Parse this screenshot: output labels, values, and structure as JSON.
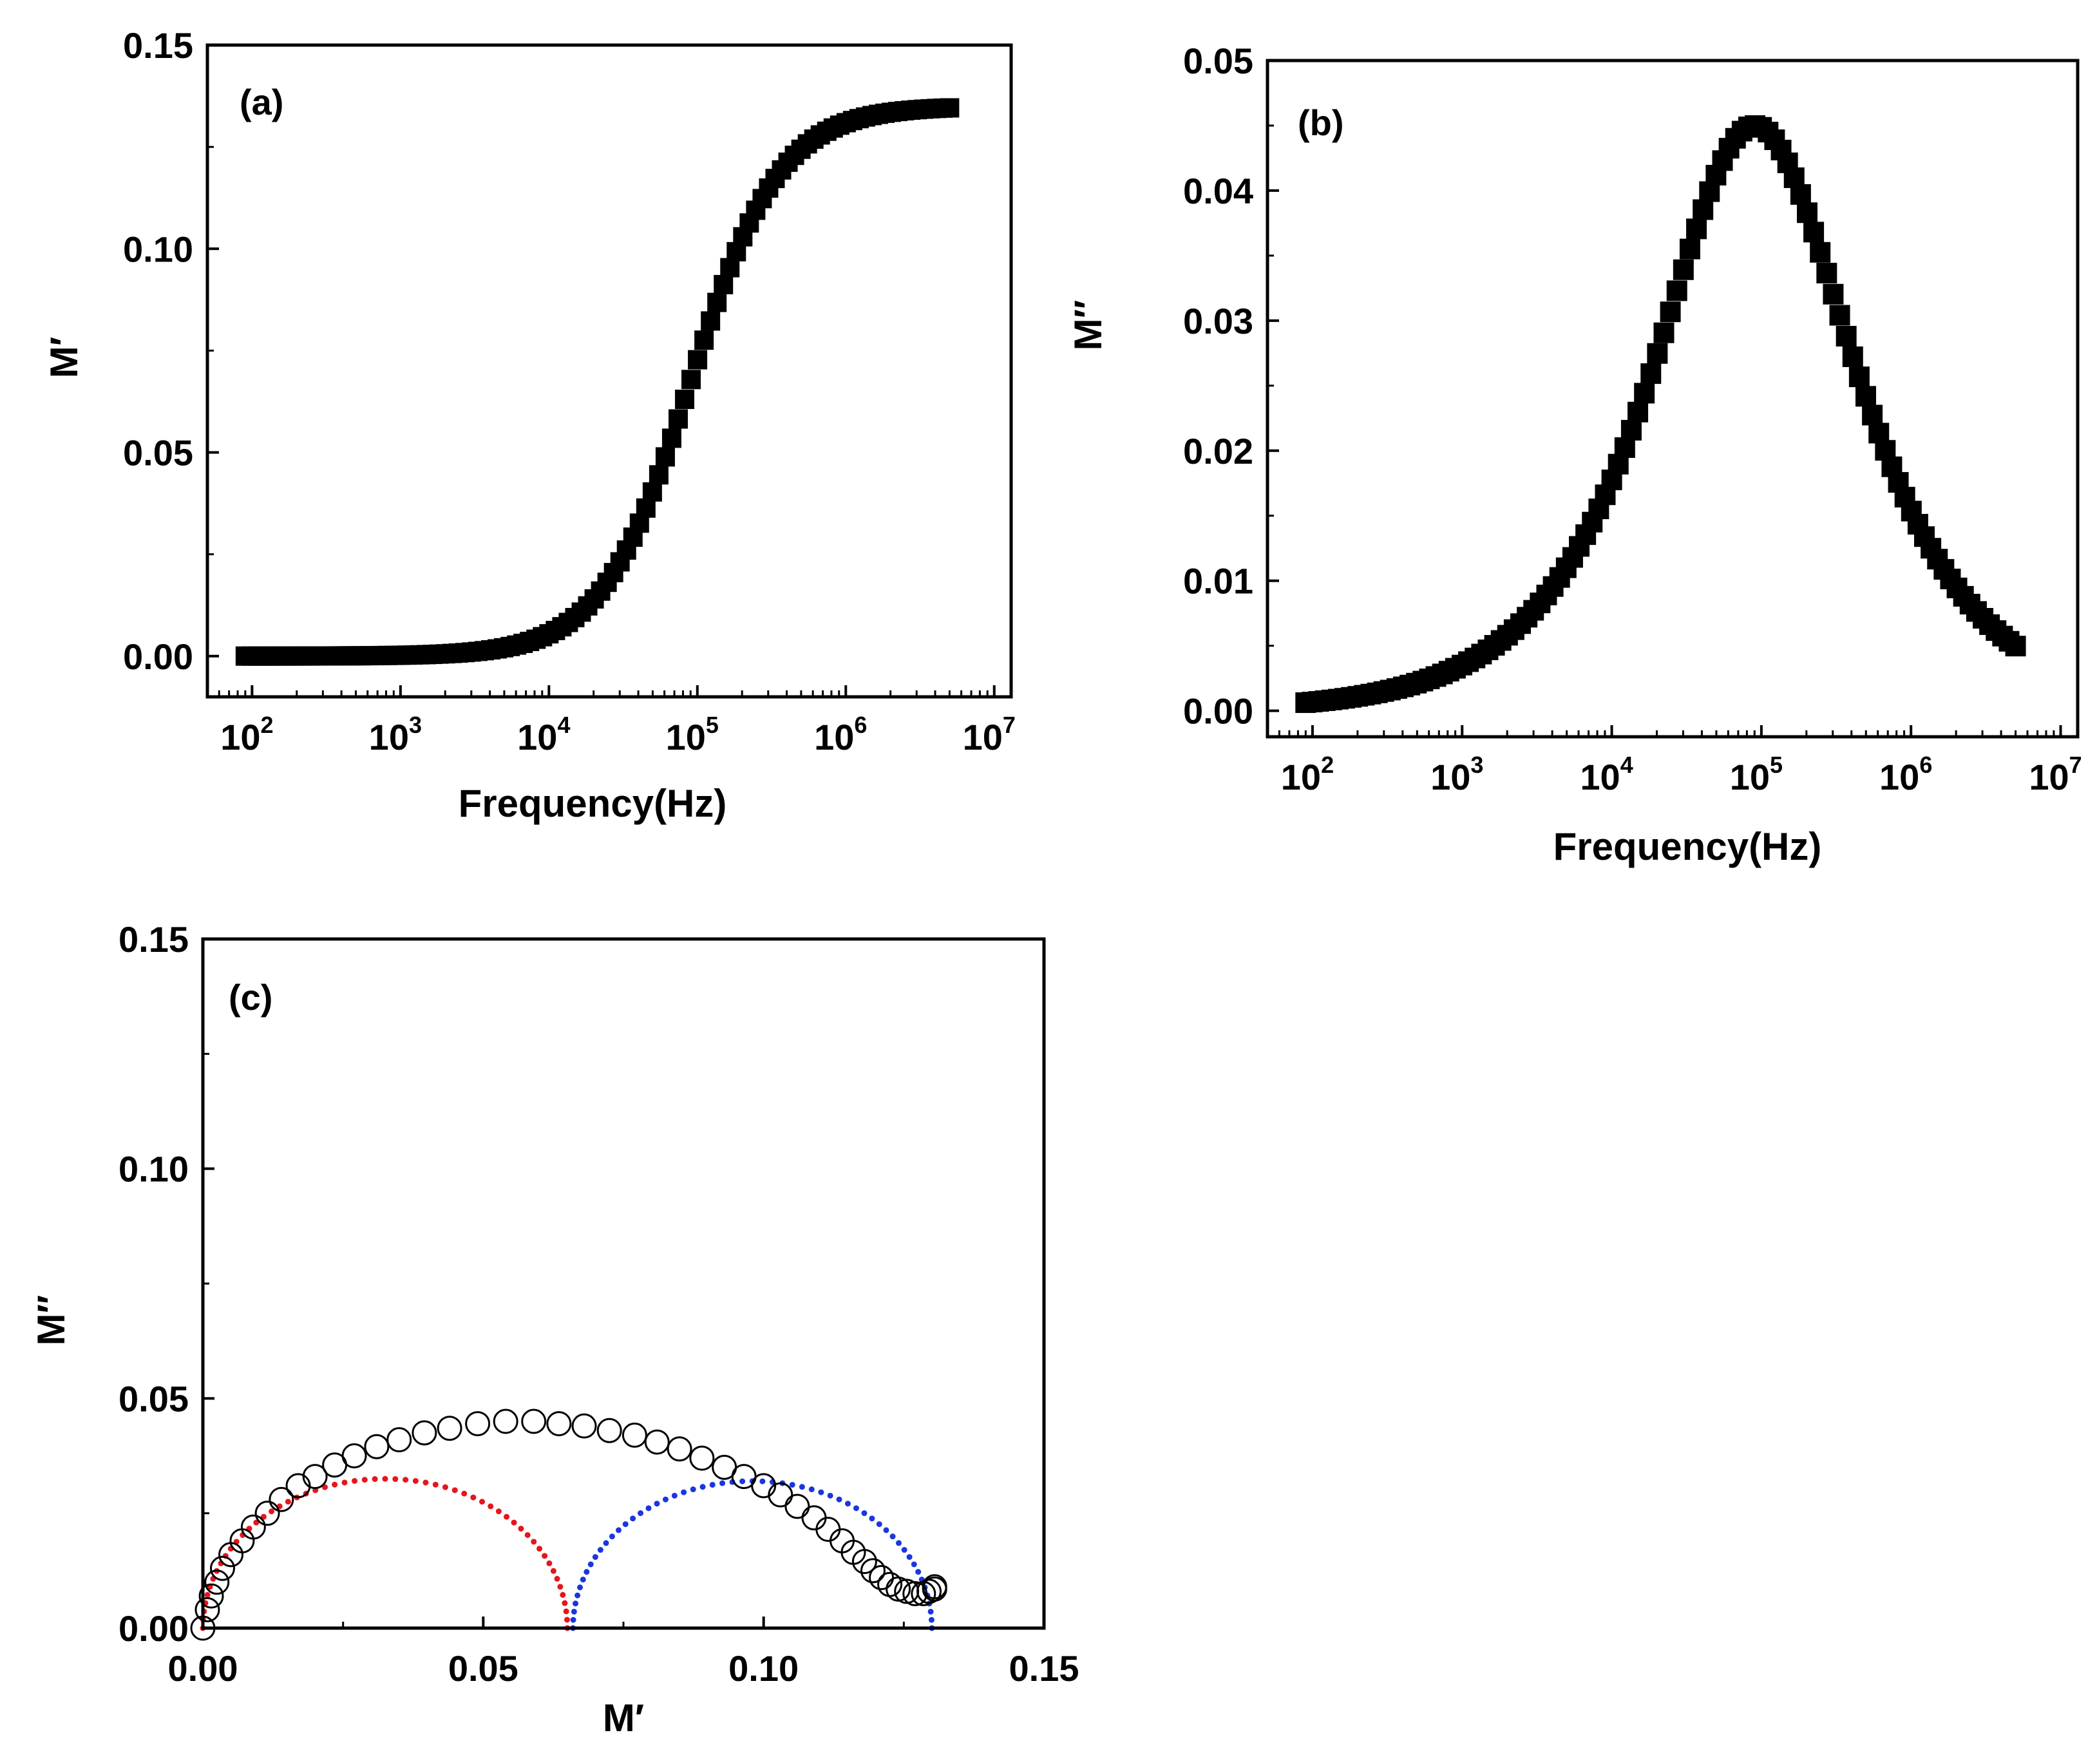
{
  "chart_data": [
    {
      "id": "a",
      "type": "scatter",
      "panel_label": "(a)",
      "xlabel": "Frequency(Hz)",
      "ylabel": "M′",
      "xscale": "log",
      "xlim": [
        50,
        13000000
      ],
      "ylim": [
        -0.01,
        0.15
      ],
      "xticks": [
        {
          "base": "10",
          "exp": "2",
          "value": 100
        },
        {
          "base": "10",
          "exp": "3",
          "value": 1000
        },
        {
          "base": "10",
          "exp": "4",
          "value": 10000
        },
        {
          "base": "10",
          "exp": "5",
          "value": 100000
        },
        {
          "base": "10",
          "exp": "6",
          "value": 1000000
        },
        {
          "base": "10",
          "exp": "7",
          "value": 10000000
        }
      ],
      "yticks": [
        {
          "label": "0.00",
          "value": 0
        },
        {
          "label": "0.05",
          "value": 0.05
        },
        {
          "label": "0.10",
          "value": 0.1
        },
        {
          "label": "0.15",
          "value": 0.15
        }
      ],
      "marker": "filled-square",
      "series": [
        {
          "name": "M′ vs frequency",
          "model": "sigmoid",
          "f_min": 90,
          "f_max": 5000000,
          "M_inf": 0.135,
          "f_peak": 90000,
          "beta": 0.72,
          "n_points": 110
        }
      ]
    },
    {
      "id": "b",
      "type": "scatter",
      "panel_label": "(b)",
      "xlabel": "Frequency(Hz)",
      "ylabel": "M″",
      "xscale": "log",
      "xlim": [
        50,
        13000000
      ],
      "ylim": [
        -0.002,
        0.05
      ],
      "xticks": [
        {
          "base": "10",
          "exp": "2",
          "value": 100
        },
        {
          "base": "10",
          "exp": "3",
          "value": 1000
        },
        {
          "base": "10",
          "exp": "4",
          "value": 10000
        },
        {
          "base": "10",
          "exp": "5",
          "value": 100000
        },
        {
          "base": "10",
          "exp": "6",
          "value": 1000000
        },
        {
          "base": "10",
          "exp": "7",
          "value": 10000000
        }
      ],
      "yticks": [
        {
          "label": "0.00",
          "value": 0
        },
        {
          "label": "0.01",
          "value": 0.01
        },
        {
          "label": "0.02",
          "value": 0.02
        },
        {
          "label": "0.03",
          "value": 0.03
        },
        {
          "label": "0.04",
          "value": 0.04
        },
        {
          "label": "0.05",
          "value": 0.05
        }
      ],
      "marker": "filled-square",
      "series": [
        {
          "name": "M″ vs frequency",
          "model": "relaxation-peak",
          "f_min": 90,
          "f_max": 5000000,
          "peak_value": 0.045,
          "f_peak": 90000,
          "beta": 0.72,
          "n_points": 110
        }
      ]
    },
    {
      "id": "c",
      "type": "scatter",
      "panel_label": "(c)",
      "xlabel": "M′",
      "ylabel": "M″",
      "xlim": [
        0,
        0.15
      ],
      "ylim": [
        0,
        0.15
      ],
      "xticks": [
        {
          "label": "0.00",
          "value": 0
        },
        {
          "label": "0.05",
          "value": 0.05
        },
        {
          "label": "0.10",
          "value": 0.1
        },
        {
          "label": "0.15",
          "value": 0.15
        }
      ],
      "yticks": [
        {
          "label": "0.00",
          "value": 0
        },
        {
          "label": "0.05",
          "value": 0.05
        },
        {
          "label": "0.10",
          "value": 0.1
        },
        {
          "label": "0.15",
          "value": 0.15
        }
      ],
      "series": [
        {
          "name": "Experimental (open circles)",
          "marker": "open-circle",
          "color": "#000000",
          "points": [
            [
              0.0,
              0.0
            ],
            [
              0.0008,
              0.004
            ],
            [
              0.0015,
              0.007
            ],
            [
              0.0025,
              0.01
            ],
            [
              0.0035,
              0.013
            ],
            [
              0.005,
              0.016
            ],
            [
              0.007,
              0.019
            ],
            [
              0.009,
              0.022
            ],
            [
              0.0115,
              0.025
            ],
            [
              0.014,
              0.028
            ],
            [
              0.017,
              0.031
            ],
            [
              0.02,
              0.033
            ],
            [
              0.0235,
              0.0355
            ],
            [
              0.027,
              0.0375
            ],
            [
              0.031,
              0.0395
            ],
            [
              0.035,
              0.041
            ],
            [
              0.0395,
              0.0425
            ],
            [
              0.044,
              0.0435
            ],
            [
              0.049,
              0.0445
            ],
            [
              0.054,
              0.045
            ],
            [
              0.059,
              0.045
            ],
            [
              0.0635,
              0.0445
            ],
            [
              0.068,
              0.044
            ],
            [
              0.0725,
              0.043
            ],
            [
              0.077,
              0.042
            ],
            [
              0.081,
              0.0405
            ],
            [
              0.085,
              0.039
            ],
            [
              0.089,
              0.037
            ],
            [
              0.093,
              0.035
            ],
            [
              0.0965,
              0.033
            ],
            [
              0.1,
              0.031
            ],
            [
              0.103,
              0.029
            ],
            [
              0.106,
              0.0265
            ],
            [
              0.109,
              0.024
            ],
            [
              0.1115,
              0.0215
            ],
            [
              0.114,
              0.019
            ],
            [
              0.116,
              0.0165
            ],
            [
              0.118,
              0.0145
            ],
            [
              0.1195,
              0.0125
            ],
            [
              0.121,
              0.011
            ],
            [
              0.1225,
              0.0095
            ],
            [
              0.124,
              0.0085
            ],
            [
              0.1255,
              0.008
            ],
            [
              0.127,
              0.0075
            ],
            [
              0.1285,
              0.0075
            ],
            [
              0.1295,
              0.008
            ],
            [
              0.1305,
              0.0085
            ],
            [
              0.1305,
              0.009
            ]
          ]
        },
        {
          "name": "Fit arc 1",
          "style": "dotted",
          "color": "#e8141c",
          "center": 0.0325,
          "radius": 0.0325
        },
        {
          "name": "Fit arc 2",
          "style": "dotted",
          "color": "#1a36e0",
          "center": 0.098,
          "radius": 0.032
        }
      ]
    }
  ]
}
